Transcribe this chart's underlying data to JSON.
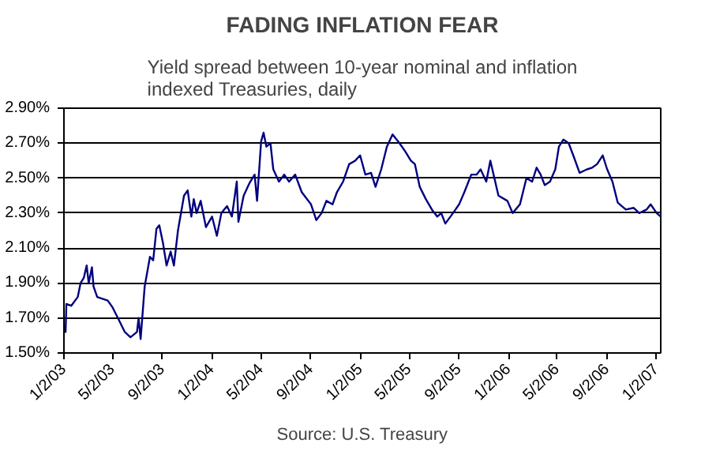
{
  "chart_data": {
    "type": "line",
    "title": "FADING INFLATION FEAR",
    "subtitle": "Yield spread between 10-year nominal and inflation indexed Treasuries, daily",
    "annotations": [
      "Source: U.S. Treasury"
    ],
    "x": [
      "2003-01-02",
      "2003-01-06",
      "2003-01-08",
      "2003-01-20",
      "2003-02-05",
      "2003-02-12",
      "2003-02-20",
      "2003-02-27",
      "2003-03-04",
      "2003-03-12",
      "2003-03-16",
      "2003-03-25",
      "2003-04-20",
      "2003-05-02",
      "2003-05-15",
      "2003-06-01",
      "2003-06-15",
      "2003-07-01",
      "2003-07-05",
      "2003-07-10",
      "2003-07-20",
      "2003-08-02",
      "2003-08-10",
      "2003-08-18",
      "2003-08-25",
      "2003-09-03",
      "2003-09-12",
      "2003-09-22",
      "2003-09-30",
      "2003-10-10",
      "2003-10-25",
      "2003-11-03",
      "2003-11-12",
      "2003-11-18",
      "2003-11-25",
      "2003-12-05",
      "2003-12-18",
      "2004-01-02",
      "2004-01-14",
      "2004-01-25",
      "2004-02-08",
      "2004-02-20",
      "2004-03-03",
      "2004-03-07",
      "2004-03-20",
      "2004-04-03",
      "2004-04-16",
      "2004-04-22",
      "2004-05-02",
      "2004-05-08",
      "2004-05-15",
      "2004-05-25",
      "2004-06-01",
      "2004-06-15",
      "2004-06-28",
      "2004-07-10",
      "2004-07-25",
      "2004-08-10",
      "2004-09-02",
      "2004-09-15",
      "2004-09-28",
      "2004-10-10",
      "2004-10-25",
      "2004-11-05",
      "2004-11-20",
      "2004-12-05",
      "2004-12-20",
      "2005-01-01",
      "2005-01-14",
      "2005-01-28",
      "2005-02-08",
      "2005-02-22",
      "2005-03-08",
      "2005-03-22",
      "2005-04-08",
      "2005-04-23",
      "2005-05-06",
      "2005-05-16",
      "2005-05-28",
      "2005-06-12",
      "2005-06-27",
      "2005-07-10",
      "2005-07-20",
      "2005-07-30",
      "2005-08-18",
      "2005-09-02",
      "2005-09-15",
      "2005-10-02",
      "2005-10-15",
      "2005-10-25",
      "2005-11-08",
      "2005-11-18",
      "2005-12-08",
      "2005-12-30",
      "2006-01-12",
      "2006-01-30",
      "2006-02-15",
      "2006-03-01",
      "2006-03-12",
      "2006-03-22",
      "2006-04-01",
      "2006-04-14",
      "2006-04-27",
      "2006-05-06",
      "2006-05-17",
      "2006-05-30",
      "2006-06-12",
      "2006-06-26",
      "2006-07-14",
      "2006-07-27",
      "2006-08-08",
      "2006-08-22",
      "2006-09-02",
      "2006-09-15",
      "2006-09-28",
      "2006-10-18",
      "2006-11-06",
      "2006-11-20",
      "2006-12-08",
      "2006-12-18",
      "2007-01-02",
      "2007-01-12"
    ],
    "series": [
      {
        "color": "#000080",
        "values": [
          1.63,
          1.62,
          1.78,
          1.77,
          1.82,
          1.9,
          1.93,
          2.0,
          1.9,
          1.99,
          1.88,
          1.82,
          1.8,
          1.76,
          1.7,
          1.62,
          1.59,
          1.62,
          1.7,
          1.58,
          1.88,
          2.05,
          2.03,
          2.21,
          2.23,
          2.13,
          2.0,
          2.08,
          2.0,
          2.2,
          2.4,
          2.43,
          2.28,
          2.38,
          2.3,
          2.37,
          2.22,
          2.28,
          2.17,
          2.3,
          2.34,
          2.28,
          2.48,
          2.25,
          2.4,
          2.47,
          2.52,
          2.37,
          2.71,
          2.76,
          2.68,
          2.7,
          2.55,
          2.48,
          2.52,
          2.48,
          2.52,
          2.42,
          2.35,
          2.26,
          2.3,
          2.37,
          2.35,
          2.42,
          2.48,
          2.58,
          2.6,
          2.63,
          2.52,
          2.53,
          2.45,
          2.55,
          2.68,
          2.75,
          2.7,
          2.65,
          2.6,
          2.58,
          2.45,
          2.38,
          2.32,
          2.28,
          2.3,
          2.24,
          2.3,
          2.35,
          2.42,
          2.52,
          2.52,
          2.55,
          2.48,
          2.6,
          2.4,
          2.37,
          2.3,
          2.35,
          2.5,
          2.48,
          2.56,
          2.52,
          2.46,
          2.48,
          2.55,
          2.68,
          2.72,
          2.7,
          2.62,
          2.53,
          2.55,
          2.56,
          2.58,
          2.63,
          2.55,
          2.48,
          2.36,
          2.32,
          2.33,
          2.3,
          2.32,
          2.35,
          2.3,
          2.28
        ]
      }
    ],
    "xlim": [
      "2003-01-02",
      "2007-01-12"
    ],
    "xticks": [
      {
        "value": "2003-01-02",
        "label": "1/2/03"
      },
      {
        "value": "2003-05-02",
        "label": "5/2/03"
      },
      {
        "value": "2003-09-02",
        "label": "9/2/03"
      },
      {
        "value": "2004-01-02",
        "label": "1/2/04"
      },
      {
        "value": "2004-05-02",
        "label": "5/2/04"
      },
      {
        "value": "2004-09-02",
        "label": "9/2/04"
      },
      {
        "value": "2005-01-02",
        "label": "1/2/05"
      },
      {
        "value": "2005-05-02",
        "label": "5/2/05"
      },
      {
        "value": "2005-09-02",
        "label": "9/2/05"
      },
      {
        "value": "2006-01-02",
        "label": "1/2/06"
      },
      {
        "value": "2006-05-02",
        "label": "5/2/06"
      },
      {
        "value": "2006-09-02",
        "label": "9/2/06"
      },
      {
        "value": "2007-01-02",
        "label": "1/2/07"
      }
    ],
    "ylim": [
      1.5,
      2.9
    ],
    "yticks": [
      {
        "value": 1.5,
        "label": "1.50%"
      },
      {
        "value": 1.7,
        "label": "1.70%"
      },
      {
        "value": 1.9,
        "label": "1.90%"
      },
      {
        "value": 2.1,
        "label": "2.10%"
      },
      {
        "value": 2.3,
        "label": "2.30%"
      },
      {
        "value": 2.5,
        "label": "2.50%"
      },
      {
        "value": 2.7,
        "label": "2.70%"
      },
      {
        "value": 2.9,
        "label": "2.90%"
      }
    ],
    "grid": "y",
    "marker": "none",
    "line_style": "solid"
  }
}
